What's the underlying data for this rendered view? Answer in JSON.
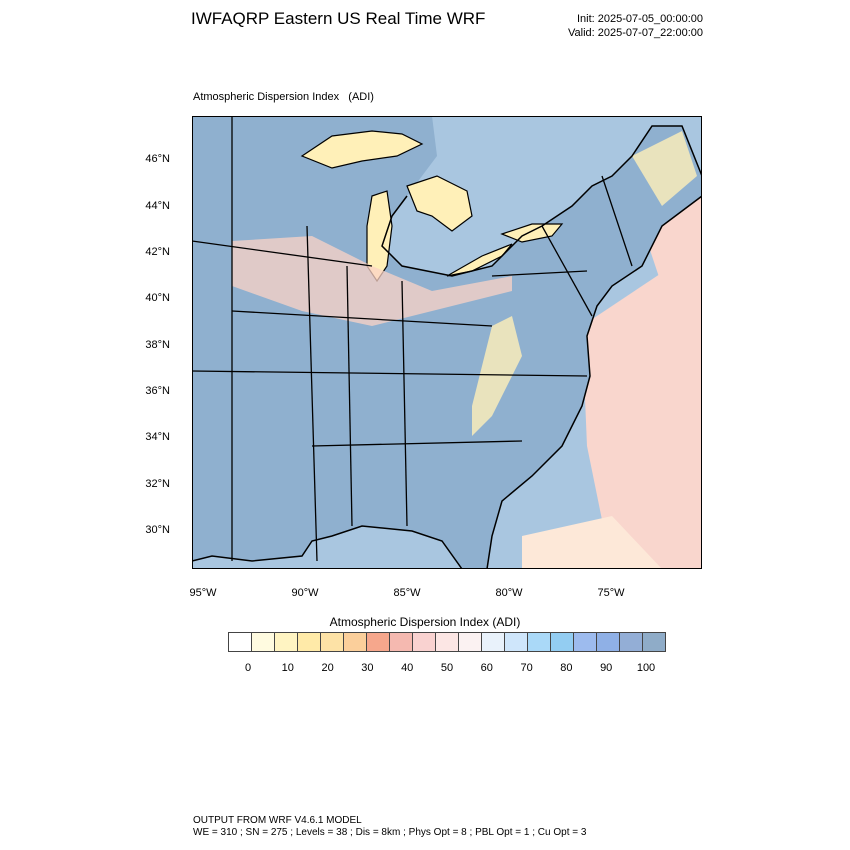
{
  "title": "IWFAQRP Eastern US Real Time WRF",
  "init_text": "Init: 2025-07-05_00:00:00",
  "valid_text": "Valid: 2025-07-07_22:00:00",
  "plot_subtitle": "Atmospheric Dispersion Index   (ADI)",
  "lat_labels": [
    "46°N",
    "44°N",
    "42°N",
    "40°N",
    "38°N",
    "36°N",
    "34°N",
    "32°N",
    "30°N"
  ],
  "lon_labels": [
    "95°W",
    "90°W",
    "85°W",
    "80°W",
    "75°W"
  ],
  "colorbar": {
    "title": "Atmospheric Dispersion Index  (ADI)",
    "ticks": [
      "0",
      "10",
      "20",
      "30",
      "40",
      "50",
      "60",
      "70",
      "80",
      "90",
      "100"
    ],
    "colors": [
      "#ffffff",
      "#fffbe0",
      "#fff4c2",
      "#ffeaa8",
      "#fde2a6",
      "#fbcf9b",
      "#f6a78c",
      "#f5b9b0",
      "#f9d2d0",
      "#fce6e4",
      "#fbf2f2",
      "#e9f2fb",
      "#cfe6fb",
      "#aad9f8",
      "#93cdf2",
      "#9dbbee",
      "#8fb0e6",
      "#93aed6",
      "#8facc8"
    ],
    "map_colors": {
      "land_good": "#8fb0cf",
      "ocean": "#a9c6e0",
      "poor": "#fbd3c5",
      "fair": "#fff0b8",
      "lake_ocean_light": "#d9e9f7"
    }
  },
  "footer": {
    "line1": "OUTPUT FROM WRF V4.6.1 MODEL",
    "line2": "WE = 310 ; SN = 275 ; Levels = 38 ; Dis = 8km ; Phys Opt = 8 ; PBL Opt = 1 ; Cu Opt = 3"
  }
}
